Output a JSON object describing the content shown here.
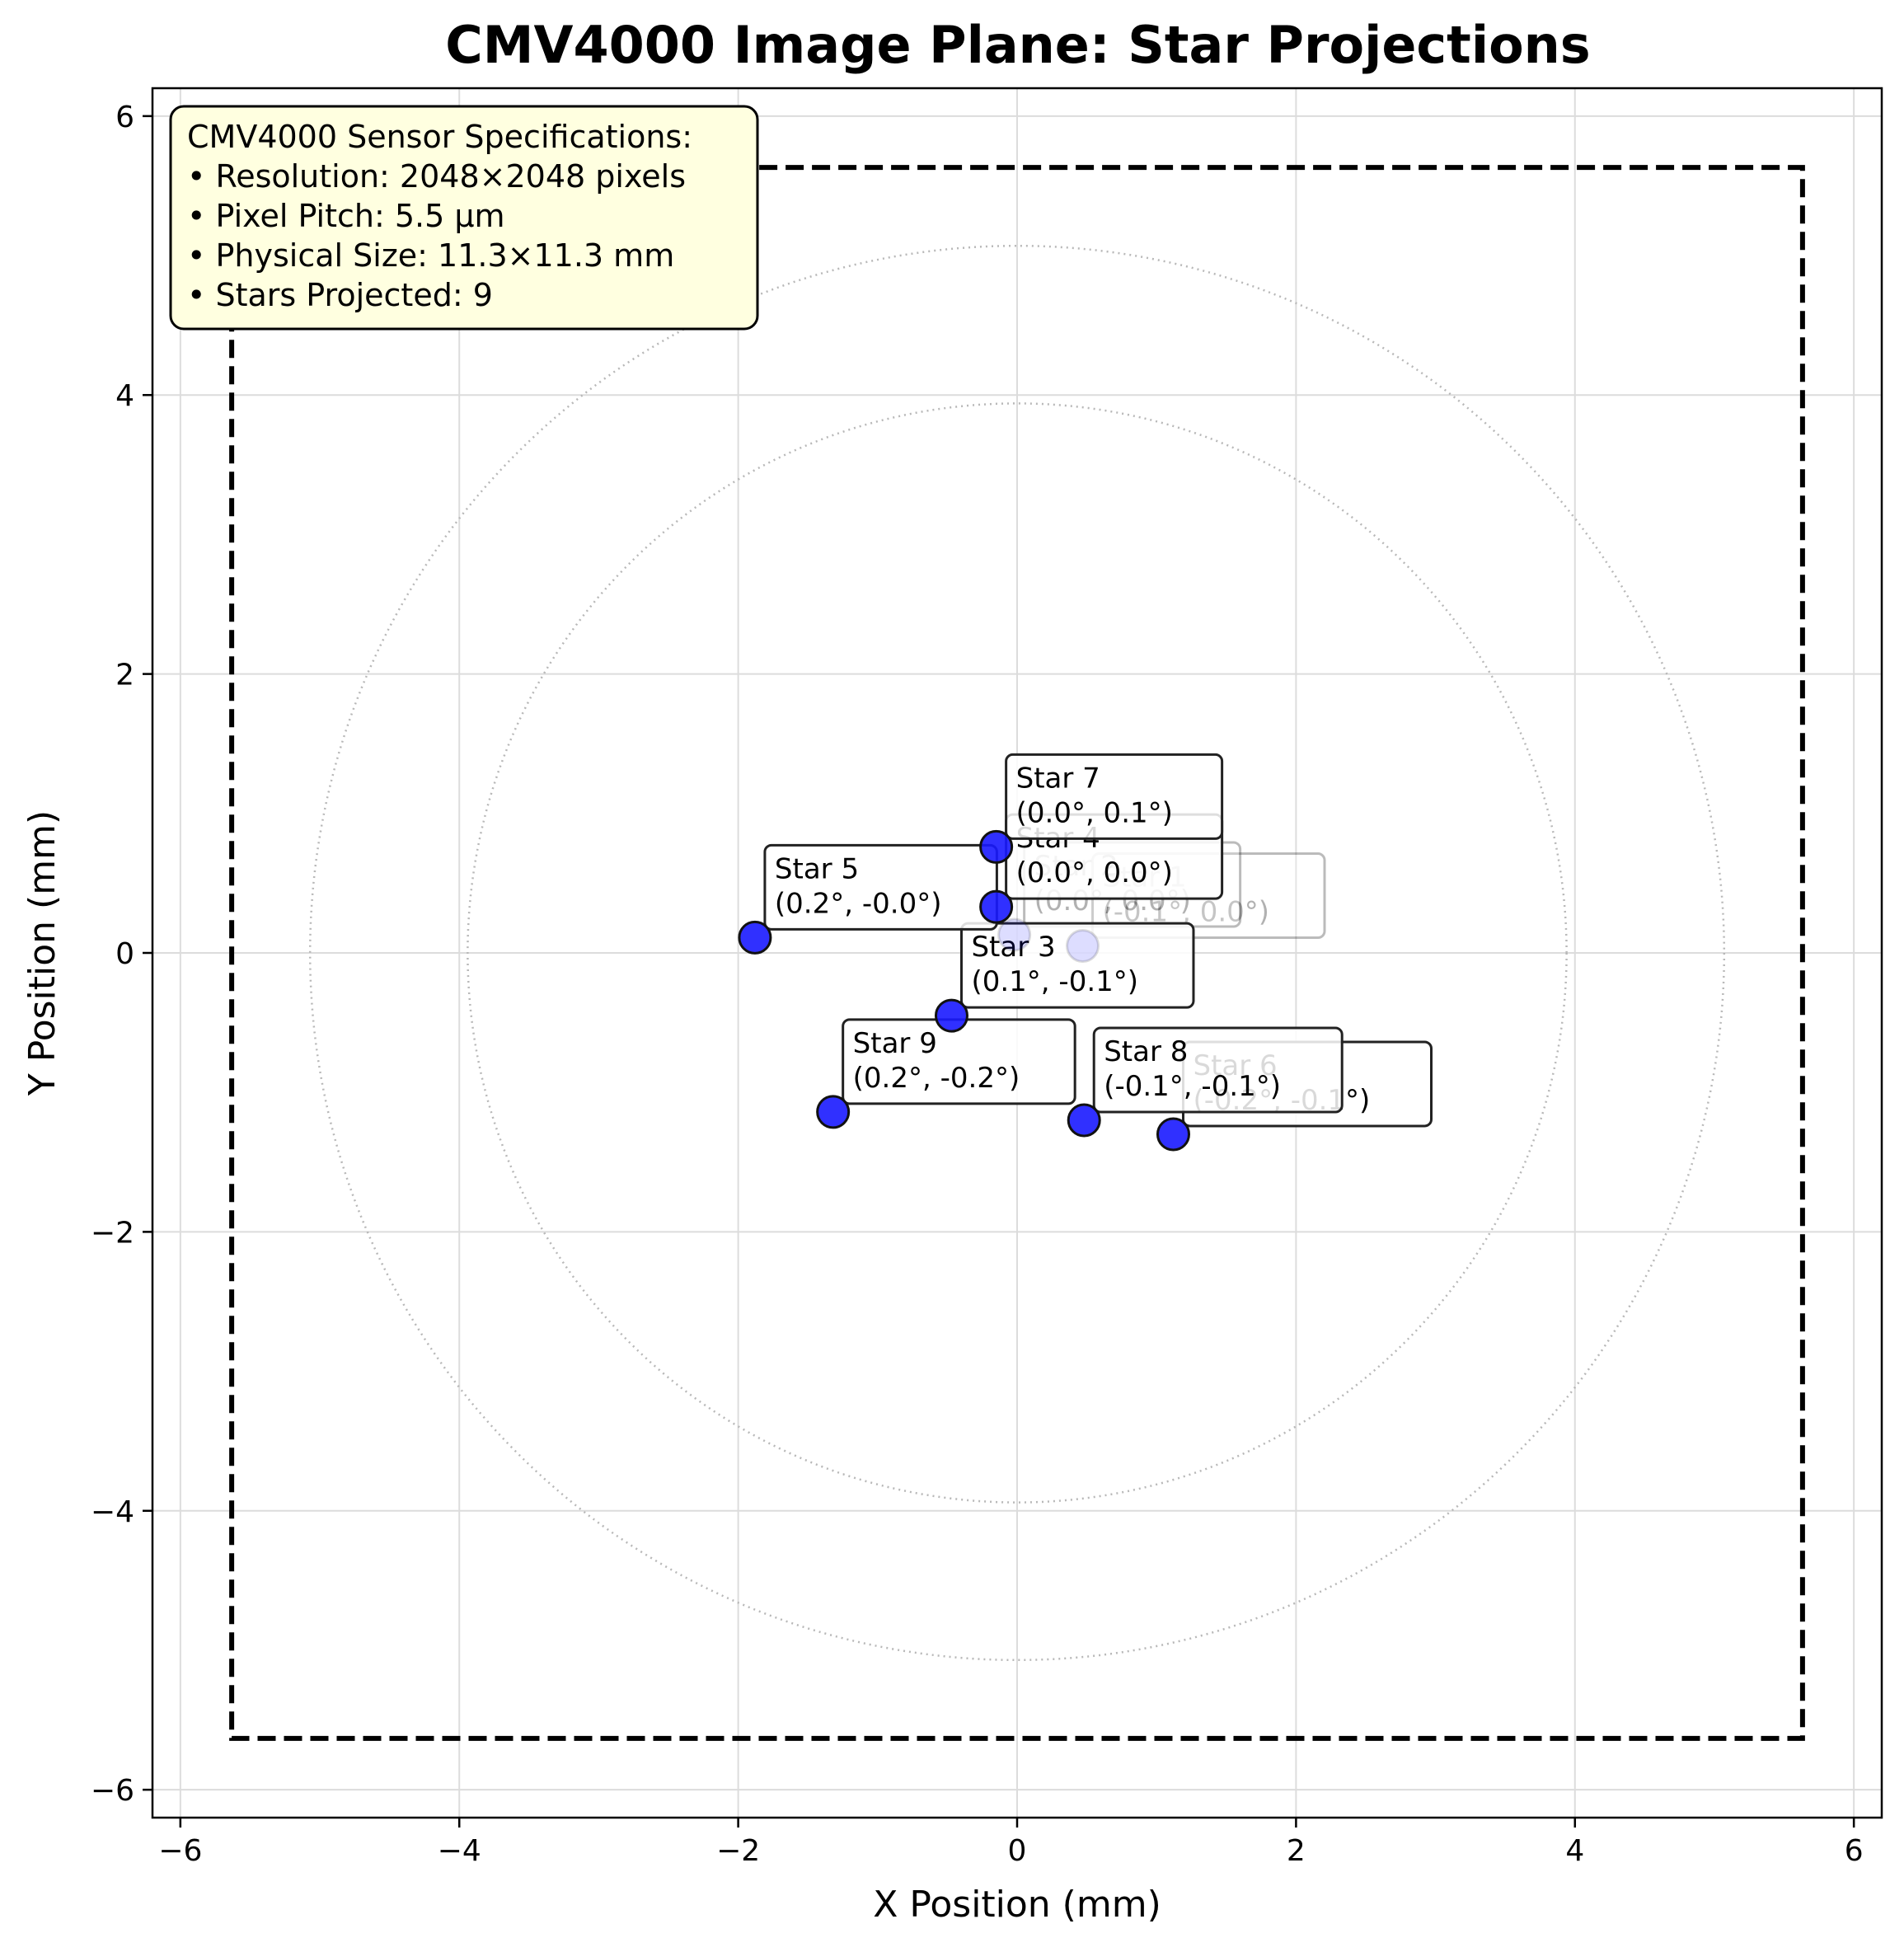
{
  "chart_data": {
    "type": "scatter",
    "title": "CMV4000 Image Plane: Star Projections",
    "xlabel": "X Position (mm)",
    "ylabel": "Y Position (mm)",
    "xlim": [
      -6.2,
      6.2
    ],
    "ylim": [
      -6.2,
      6.2
    ],
    "xticks": [
      -6,
      -4,
      -2,
      0,
      2,
      4,
      6
    ],
    "yticks": [
      -6,
      -4,
      -2,
      0,
      2,
      4,
      6
    ],
    "xtick_labels": [
      "−6",
      "−4",
      "−2",
      "0",
      "2",
      "4",
      "6"
    ],
    "ytick_labels": [
      "−6",
      "−4",
      "−2",
      "0",
      "2",
      "4",
      "6"
    ],
    "grid": true,
    "sensor_half_size_mm": 5.632,
    "reference_circle_radii_mm": [
      3.94,
      5.07
    ],
    "marker_color": "#1a1aff",
    "info_box": {
      "lines": [
        "CMV4000 Sensor Specifications:",
        "• Resolution: 2048×2048 pixels",
        "• Pixel Pitch: 5.5 µm",
        "• Physical Size: 11.3×11.3 mm",
        "• Stars Projected: 9"
      ],
      "background": "#ffffe0",
      "location": "top-left"
    },
    "stars": [
      {
        "name": "Star 1",
        "x": 0.47,
        "y": 0.05,
        "label_lines": [
          "Star 1",
          "(-0.1°, 0.0°)"
        ],
        "faded": true
      },
      {
        "name": "Star 2",
        "x": -0.02,
        "y": 0.13,
        "label_lines": [
          "Star 2",
          "(0.0°, 0.0°)"
        ],
        "faded": true
      },
      {
        "name": "Star 3",
        "x": -0.47,
        "y": -0.45,
        "label_lines": [
          "Star 3",
          "(0.1°, -0.1°)"
        ],
        "faded": false
      },
      {
        "name": "Star 4",
        "x": -0.15,
        "y": 0.33,
        "label_lines": [
          "Star 4",
          "(0.0°, 0.0°)"
        ],
        "faded": false
      },
      {
        "name": "Star 5",
        "x": -1.88,
        "y": 0.11,
        "label_lines": [
          "Star 5",
          "(0.2°, -0.0°)"
        ],
        "faded": false
      },
      {
        "name": "Star 6",
        "x": 1.12,
        "y": -1.3,
        "label_lines": [
          "Star 6",
          "(-0.2°, -0.1°)"
        ],
        "faded": false
      },
      {
        "name": "Star 7",
        "x": -0.15,
        "y": 0.76,
        "label_lines": [
          "Star 7",
          "(0.0°, 0.1°)"
        ],
        "faded": false
      },
      {
        "name": "Star 8",
        "x": 0.48,
        "y": -1.2,
        "label_lines": [
          "Star 8",
          "(-0.1°, -0.1°)"
        ],
        "faded": false
      },
      {
        "name": "Star 9",
        "x": -1.32,
        "y": -1.14,
        "label_lines": [
          "Star 9",
          "(0.2°, -0.2°)"
        ],
        "faded": false
      }
    ]
  }
}
